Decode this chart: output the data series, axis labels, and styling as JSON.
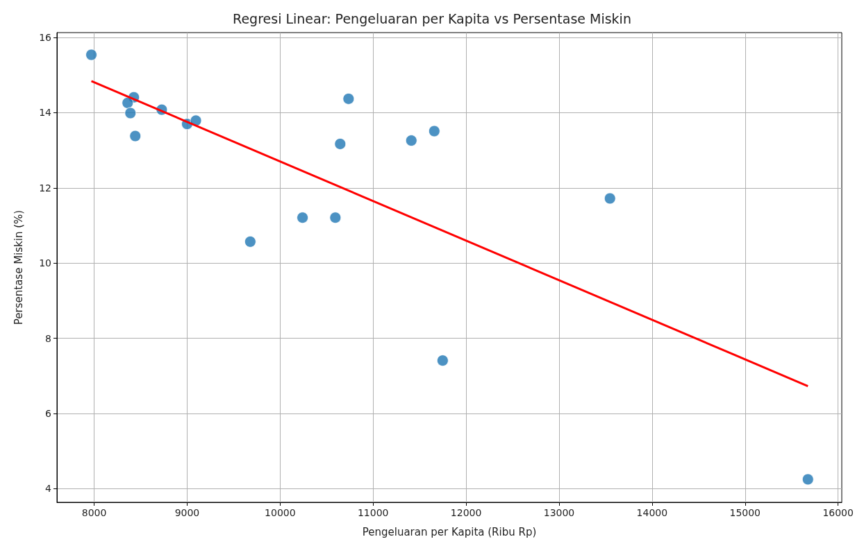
{
  "chart_data": {
    "type": "scatter",
    "title": "Regresi Linear: Pengeluaran per Kapita vs Persentase Miskin",
    "xlabel": "Pengeluaran per Kapita (Ribu Rp)",
    "ylabel": "Persentase Miskin (%)",
    "xlim": [
      7600,
      16040
    ],
    "xticks": [
      8000,
      9000,
      10000,
      11000,
      12000,
      13000,
      14000,
      15000,
      16000
    ],
    "ylim": [
      3.64,
      16.13
    ],
    "yticks": [
      4,
      6,
      8,
      10,
      12,
      14,
      16
    ],
    "grid": true,
    "series": [
      {
        "color": "#1f77b4",
        "marker": "circle",
        "x": [
          7970,
          8427,
          8360,
          8390,
          8442,
          8727,
          9000,
          9094,
          9679,
          10241,
          10594,
          10646,
          10736,
          11411,
          11658,
          11748,
          13547,
          15676
        ],
        "values": [
          15.54,
          14.41,
          14.26,
          13.99,
          13.38,
          14.08,
          13.7,
          13.79,
          10.57,
          11.21,
          11.21,
          13.17,
          14.37,
          13.26,
          13.51,
          7.41,
          11.72,
          4.25
        ]
      },
      {
        "type": "line",
        "color": "#ff0000",
        "x": [
          7970,
          15676
        ],
        "values": [
          14.84,
          6.73
        ]
      }
    ]
  }
}
